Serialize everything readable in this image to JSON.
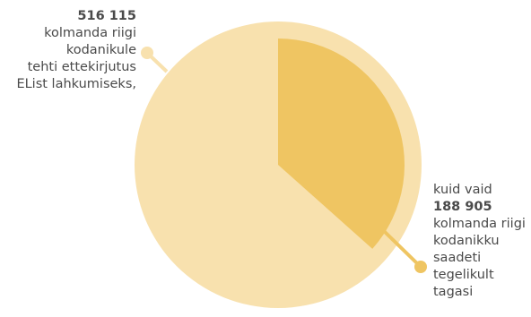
{
  "colors": {
    "total": "#f8e1ae",
    "returned": "#efc562",
    "line_left": "#f8e1ae",
    "line_right": "#efc562"
  },
  "chart_data": {
    "type": "pie",
    "slices": [
      {
        "label": "kolmanda riigi kodanikule tehti ettekirjutus EList lahkumiseks",
        "value": 516115
      },
      {
        "label": "kolmanda riigi kodanikku saadeti tegelikult tagasi",
        "value": 188905
      }
    ],
    "annotations": {
      "left": {
        "value": "516 115",
        "lines": [
          "kolmanda riigi",
          "kodanikule",
          "tehti ettekirjutus",
          "EList lahkumiseks,"
        ]
      },
      "right": {
        "intro": "kuid vaid",
        "value": "188 905",
        "lines": [
          "kolmanda riigi",
          "kodanikku",
          "saadeti",
          "tegelikult",
          "tagasi"
        ]
      }
    }
  }
}
